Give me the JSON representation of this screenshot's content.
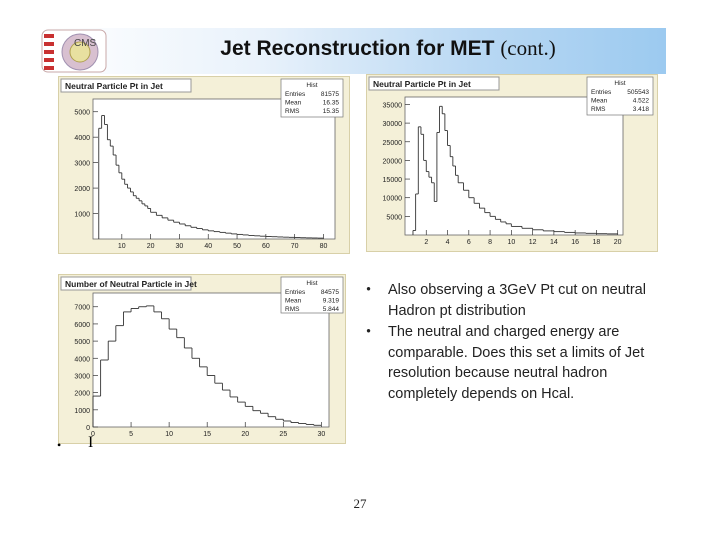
{
  "header": {
    "title_bold": "Jet Reconstruction for MET",
    "title_suffix": "(cont.)",
    "logo_text": "CMS"
  },
  "colors": {
    "header_right": "#9ccaf0",
    "panel_bg": "#f4f0d8",
    "hist_line": "#333333"
  },
  "chart_data": [
    {
      "type": "histogram",
      "title": "Neutral Particle Pt in Jet",
      "stats": [
        [
          "Entries",
          "81575"
        ],
        [
          "Mean",
          "16.35"
        ],
        [
          "RMS",
          "15.35"
        ]
      ],
      "stats_header": "Hist",
      "xlim": [
        0,
        84
      ],
      "ylim": [
        0,
        5500
      ],
      "xticks": [
        10,
        20,
        30,
        40,
        50,
        60,
        70,
        80
      ],
      "yticks": [
        1000,
        2000,
        3000,
        4000,
        5000
      ],
      "x": [
        3,
        4,
        5,
        6,
        7,
        8,
        9,
        10,
        11,
        12,
        13,
        14,
        15,
        16,
        17,
        18,
        19,
        20,
        22,
        24,
        26,
        28,
        30,
        32,
        34,
        36,
        38,
        40,
        42,
        44,
        46,
        48,
        50,
        52,
        54,
        56,
        58,
        60,
        62,
        64,
        66,
        68,
        70,
        72,
        74,
        76,
        78,
        80
      ],
      "values": [
        4350,
        4850,
        4500,
        3900,
        3650,
        3300,
        2900,
        2600,
        2350,
        2150,
        2000,
        1850,
        1700,
        1600,
        1500,
        1380,
        1300,
        1200,
        1050,
        930,
        830,
        740,
        660,
        590,
        520,
        460,
        410,
        360,
        320,
        290,
        260,
        230,
        200,
        180,
        160,
        140,
        125,
        110,
        100,
        90,
        80,
        72,
        65,
        58,
        50,
        44,
        40,
        35
      ]
    },
    {
      "type": "histogram",
      "title": "Neutral Particle Pt in Jet",
      "stats": [
        [
          "Entries",
          "505543"
        ],
        [
          "Mean",
          "4.522"
        ],
        [
          "RMS",
          "3.418"
        ]
      ],
      "stats_header": "Hist",
      "xlim": [
        0,
        20.5
      ],
      "ylim": [
        0,
        37000
      ],
      "xticks": [
        2,
        4,
        6,
        8,
        10,
        12,
        14,
        16,
        18,
        20
      ],
      "yticks": [
        5000,
        10000,
        15000,
        20000,
        25000,
        30000,
        35000
      ],
      "x": [
        1.0,
        1.25,
        1.5,
        1.75,
        2.0,
        2.25,
        2.5,
        2.75,
        3.0,
        3.25,
        3.5,
        3.75,
        4.0,
        4.25,
        4.5,
        4.75,
        5.0,
        5.5,
        6.0,
        6.5,
        7.0,
        7.5,
        8.0,
        8.5,
        9.0,
        9.5,
        10.0,
        11.0,
        12.0,
        13.0,
        14.0,
        15.0,
        16.0,
        17.0,
        18.0,
        19.0,
        20.0
      ],
      "values": [
        1200,
        11000,
        29000,
        27000,
        20000,
        17000,
        15500,
        14000,
        9000,
        27500,
        34500,
        32500,
        28000,
        24000,
        21000,
        18500,
        16000,
        14000,
        12000,
        10000,
        8500,
        7200,
        6000,
        5000,
        4200,
        3500,
        3000,
        2300,
        1800,
        1400,
        1100,
        900,
        700,
        550,
        450,
        350,
        300
      ]
    },
    {
      "type": "histogram",
      "title": "Number of Neutral Particle in Jet",
      "stats": [
        [
          "Entries",
          "84575"
        ],
        [
          "Mean",
          "9.319"
        ],
        [
          "RMS",
          "5.844"
        ]
      ],
      "stats_header": "Hist",
      "xlim": [
        0,
        31
      ],
      "ylim": [
        0,
        7800
      ],
      "xticks": [
        0,
        5,
        10,
        15,
        20,
        25,
        30
      ],
      "yticks": [
        0,
        1000,
        2000,
        3000,
        4000,
        5000,
        6000,
        7000
      ],
      "x": [
        1,
        2,
        3,
        4,
        5,
        6,
        7,
        8,
        9,
        10,
        11,
        12,
        13,
        14,
        15,
        16,
        17,
        18,
        19,
        20,
        21,
        22,
        23,
        24,
        25,
        26,
        27,
        28,
        29,
        30
      ],
      "values": [
        1800,
        3900,
        5000,
        5900,
        6700,
        6900,
        7000,
        7050,
        6700,
        6300,
        5700,
        5200,
        4600,
        4000,
        3500,
        3000,
        2550,
        2150,
        1750,
        1450,
        1200,
        950,
        800,
        600,
        450,
        350,
        260,
        200,
        150,
        100
      ]
    }
  ],
  "bullets": [
    {
      "marker": "•",
      "text": "Also observing a 3GeV Pt cut on neutral Hadron pt distribution"
    },
    {
      "marker": "•",
      "text": "The neutral and charged energy are comparable. Does this set a limits of Jet resolution because neutral hadron completely depends on Hcal."
    }
  ],
  "stray": {
    "mark1": "•",
    "mark2": "I"
  },
  "page_number": "27"
}
